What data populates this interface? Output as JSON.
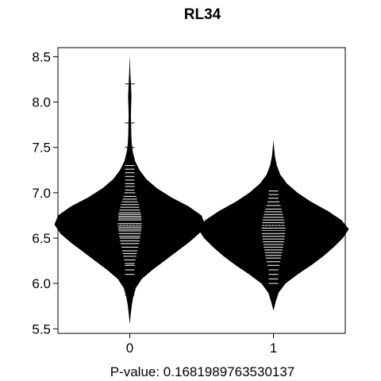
{
  "chart_data": {
    "type": "beanplot",
    "title": "RL34",
    "xlabel": "P-value: 0.1681989763530137",
    "categories": [
      "0",
      "1"
    ],
    "ylim": [
      5.45,
      8.6
    ],
    "y_ticks": [
      "5.5",
      "6.0",
      "6.5",
      "7.0",
      "7.5",
      "8.0",
      "8.5"
    ],
    "overall_mean": 6.645,
    "grid": false,
    "colors": {
      "bean_fill": "#000000",
      "rug_lines": "#ffffff",
      "axis": "#000000",
      "background": "#ffffff"
    },
    "series": [
      {
        "category": "0",
        "mean": 6.68,
        "density": [
          [
            5.55,
            0.0
          ],
          [
            5.65,
            0.012
          ],
          [
            5.75,
            0.025
          ],
          [
            5.85,
            0.045
          ],
          [
            5.95,
            0.08
          ],
          [
            6.05,
            0.16
          ],
          [
            6.15,
            0.3
          ],
          [
            6.25,
            0.46
          ],
          [
            6.35,
            0.62
          ],
          [
            6.45,
            0.78
          ],
          [
            6.55,
            0.92
          ],
          [
            6.65,
            1.0
          ],
          [
            6.75,
            0.95
          ],
          [
            6.85,
            0.78
          ],
          [
            6.95,
            0.55
          ],
          [
            7.05,
            0.36
          ],
          [
            7.15,
            0.22
          ],
          [
            7.25,
            0.13
          ],
          [
            7.35,
            0.07
          ],
          [
            7.45,
            0.04
          ],
          [
            7.55,
            0.025
          ],
          [
            7.65,
            0.02
          ],
          [
            7.75,
            0.018
          ],
          [
            7.85,
            0.015
          ],
          [
            7.95,
            0.018
          ],
          [
            8.05,
            0.022
          ],
          [
            8.15,
            0.018
          ],
          [
            8.25,
            0.012
          ],
          [
            8.35,
            0.006
          ],
          [
            8.52,
            0.0
          ]
        ],
        "observations": [
          5.87,
          6.1,
          6.15,
          6.2,
          6.22,
          6.26,
          6.3,
          6.33,
          6.36,
          6.4,
          6.44,
          6.47,
          6.5,
          6.52,
          6.55,
          6.58,
          6.6,
          6.62,
          6.64,
          6.66,
          6.68,
          6.7,
          6.72,
          6.74,
          6.76,
          6.78,
          6.81,
          6.84,
          6.87,
          6.9,
          6.93,
          6.96,
          7.0,
          7.03,
          7.07,
          7.1,
          7.14,
          7.18,
          7.22,
          7.26,
          7.3,
          7.5,
          7.77,
          8.2
        ]
      },
      {
        "category": "1",
        "mean": 6.57,
        "density": [
          [
            5.7,
            0.0
          ],
          [
            5.8,
            0.03
          ],
          [
            5.9,
            0.07
          ],
          [
            6.0,
            0.16
          ],
          [
            6.1,
            0.32
          ],
          [
            6.2,
            0.5
          ],
          [
            6.3,
            0.66
          ],
          [
            6.4,
            0.8
          ],
          [
            6.5,
            0.92
          ],
          [
            6.6,
            1.0
          ],
          [
            6.7,
            0.9
          ],
          [
            6.8,
            0.72
          ],
          [
            6.9,
            0.5
          ],
          [
            7.0,
            0.32
          ],
          [
            7.1,
            0.18
          ],
          [
            7.2,
            0.09
          ],
          [
            7.3,
            0.045
          ],
          [
            7.4,
            0.02
          ],
          [
            7.5,
            0.008
          ],
          [
            7.58,
            0.0
          ]
        ],
        "observations": [
          6.0,
          6.05,
          6.1,
          6.15,
          6.2,
          6.24,
          6.28,
          6.31,
          6.34,
          6.37,
          6.4,
          6.43,
          6.46,
          6.49,
          6.52,
          6.55,
          6.58,
          6.61,
          6.64,
          6.67,
          6.7,
          6.73,
          6.76,
          6.79,
          6.82,
          6.86,
          6.9,
          6.94,
          6.98,
          7.02,
          7.26
        ]
      }
    ]
  }
}
